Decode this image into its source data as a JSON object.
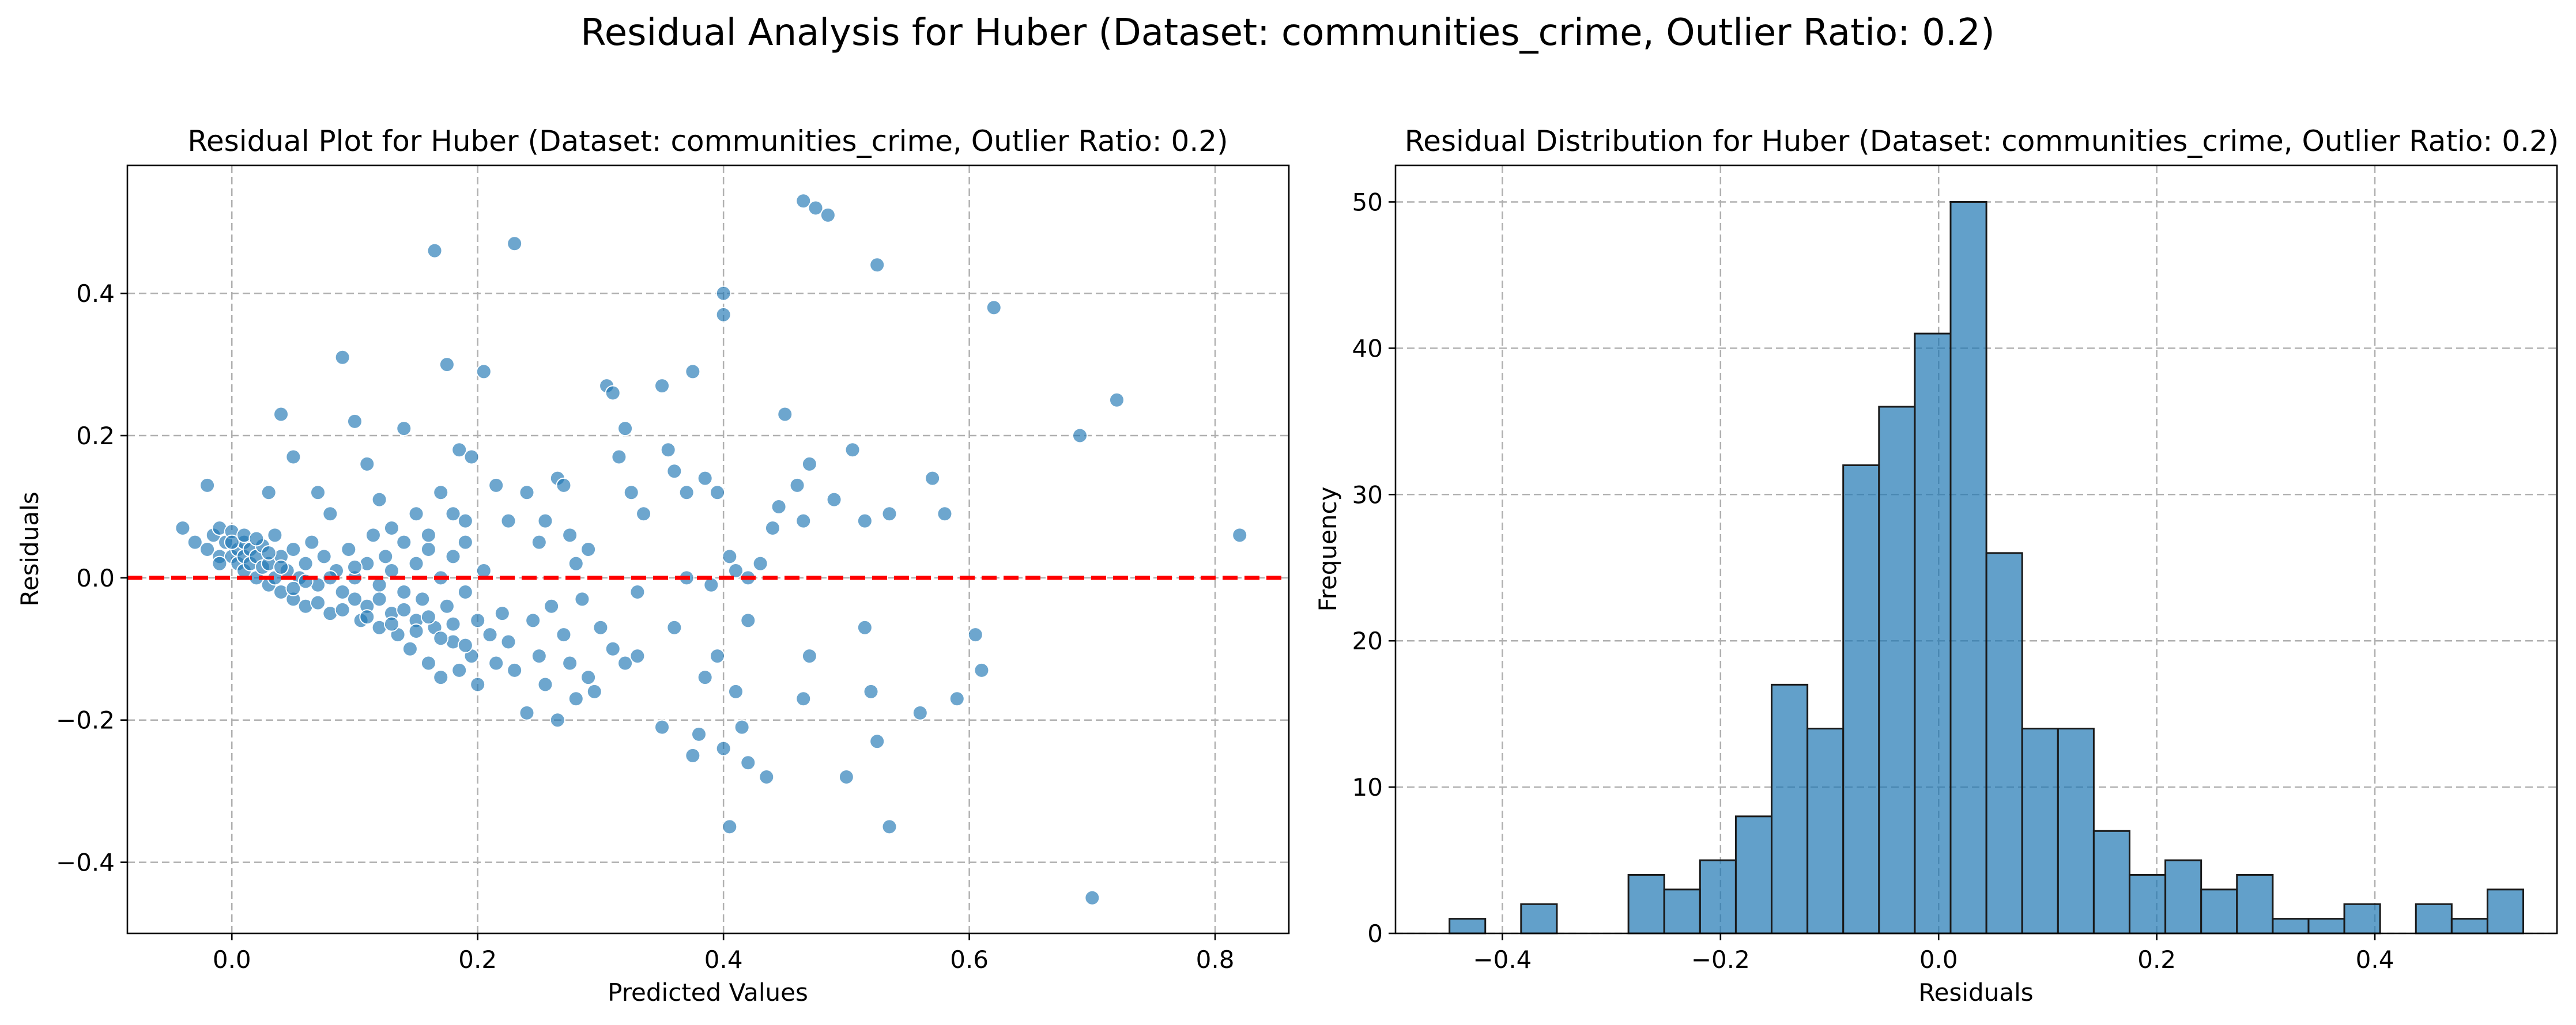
{
  "figure": {
    "suptitle": "Residual Analysis for Huber (Dataset: communities_crime, Outlier Ratio: 0.2)"
  },
  "colors": {
    "points": "#1f77b4",
    "reference_line": "#ff0000",
    "bars": "#1f77b4",
    "bar_edge": "#1a1a1a",
    "grid": "#b0b0b0"
  },
  "chart_data": [
    {
      "type": "scatter",
      "title": "Residual Plot for Huber (Dataset: communities_crime, Outlier Ratio: 0.2)",
      "xlabel": "Predicted Values",
      "ylabel": "Residuals",
      "xlim": [
        -0.085,
        0.86
      ],
      "ylim": [
        -0.5,
        0.58
      ],
      "xticks": [
        0.0,
        0.2,
        0.4,
        0.6,
        0.8
      ],
      "xtick_labels": [
        "0.0",
        "0.2",
        "0.4",
        "0.6",
        "0.8"
      ],
      "yticks": [
        -0.4,
        -0.2,
        0.0,
        0.2,
        0.4
      ],
      "ytick_labels": [
        "−0.4",
        "−0.2",
        "0.0",
        "0.2",
        "0.4"
      ],
      "grid": true,
      "reference_line": {
        "y": 0.0,
        "style": "dashed",
        "color": "#ff0000"
      },
      "points": [
        [
          -0.04,
          0.07
        ],
        [
          -0.03,
          0.05
        ],
        [
          -0.02,
          0.13
        ],
        [
          -0.02,
          0.04
        ],
        [
          -0.015,
          0.06
        ],
        [
          -0.01,
          0.07
        ],
        [
          -0.01,
          0.03
        ],
        [
          -0.005,
          0.05
        ],
        [
          0.0,
          0.065
        ],
        [
          0.0,
          0.03
        ],
        [
          0.005,
          0.04
        ],
        [
          0.005,
          0.02
        ],
        [
          0.01,
          0.05
        ],
        [
          0.01,
          0.03
        ],
        [
          0.01,
          0.01
        ],
        [
          0.015,
          0.04
        ],
        [
          0.015,
          0.02
        ],
        [
          0.02,
          0.03
        ],
        [
          0.02,
          0.0
        ],
        [
          0.025,
          0.045
        ],
        [
          0.025,
          0.015
        ],
        [
          0.03,
          0.02
        ],
        [
          0.03,
          -0.01
        ],
        [
          0.035,
          0.06
        ],
        [
          0.035,
          0.0
        ],
        [
          0.04,
          0.03
        ],
        [
          0.04,
          -0.02
        ],
        [
          0.045,
          0.01
        ],
        [
          0.05,
          0.04
        ],
        [
          0.05,
          -0.03
        ],
        [
          0.055,
          0.0
        ],
        [
          0.06,
          0.02
        ],
        [
          0.06,
          -0.04
        ],
        [
          0.065,
          0.05
        ],
        [
          0.07,
          -0.01
        ],
        [
          0.075,
          0.03
        ],
        [
          0.08,
          -0.05
        ],
        [
          0.085,
          0.01
        ],
        [
          0.09,
          -0.02
        ],
        [
          0.095,
          0.04
        ],
        [
          0.1,
          -0.03
        ],
        [
          0.1,
          0.0
        ],
        [
          0.105,
          -0.06
        ],
        [
          0.11,
          0.02
        ],
        [
          0.11,
          -0.04
        ],
        [
          0.115,
          0.06
        ],
        [
          0.12,
          -0.07
        ],
        [
          0.12,
          -0.01
        ],
        [
          0.125,
          0.03
        ],
        [
          0.13,
          -0.05
        ],
        [
          0.13,
          0.01
        ],
        [
          0.135,
          -0.08
        ],
        [
          0.14,
          -0.02
        ],
        [
          0.14,
          0.05
        ],
        [
          0.145,
          -0.1
        ],
        [
          0.15,
          0.02
        ],
        [
          0.15,
          -0.06
        ],
        [
          0.155,
          -0.03
        ],
        [
          0.16,
          -0.12
        ],
        [
          0.16,
          0.04
        ],
        [
          0.165,
          -0.07
        ],
        [
          0.17,
          0.0
        ],
        [
          0.17,
          -0.14
        ],
        [
          0.175,
          -0.04
        ],
        [
          0.18,
          0.03
        ],
        [
          0.18,
          -0.09
        ],
        [
          0.185,
          -0.13
        ],
        [
          0.19,
          -0.02
        ],
        [
          0.19,
          0.05
        ],
        [
          0.195,
          -0.11
        ],
        [
          0.2,
          -0.06
        ],
        [
          0.2,
          -0.15
        ],
        [
          0.205,
          0.01
        ],
        [
          0.21,
          -0.08
        ],
        [
          0.215,
          -0.12
        ],
        [
          -0.01,
          0.02
        ],
        [
          0.0,
          0.05
        ],
        [
          0.01,
          0.06
        ],
        [
          0.02,
          0.055
        ],
        [
          0.03,
          0.035
        ],
        [
          0.04,
          0.015
        ],
        [
          0.05,
          -0.015
        ],
        [
          0.06,
          -0.005
        ],
        [
          0.07,
          -0.035
        ],
        [
          0.08,
          0.0
        ],
        [
          0.09,
          -0.045
        ],
        [
          0.1,
          0.015
        ],
        [
          0.11,
          -0.055
        ],
        [
          0.12,
          -0.03
        ],
        [
          0.13,
          -0.065
        ],
        [
          0.14,
          -0.045
        ],
        [
          0.15,
          -0.075
        ],
        [
          0.16,
          -0.055
        ],
        [
          0.17,
          -0.085
        ],
        [
          0.18,
          -0.065
        ],
        [
          0.19,
          -0.095
        ],
        [
          0.03,
          0.12
        ],
        [
          0.04,
          0.23
        ],
        [
          0.05,
          0.17
        ],
        [
          0.07,
          0.12
        ],
        [
          0.08,
          0.09
        ],
        [
          0.09,
          0.31
        ],
        [
          0.1,
          0.22
        ],
        [
          0.11,
          0.16
        ],
        [
          0.12,
          0.11
        ],
        [
          0.13,
          0.07
        ],
        [
          0.14,
          0.21
        ],
        [
          0.15,
          0.09
        ],
        [
          0.16,
          0.06
        ],
        [
          0.165,
          0.46
        ],
        [
          0.17,
          0.12
        ],
        [
          0.175,
          0.3
        ],
        [
          0.18,
          0.09
        ],
        [
          0.185,
          0.18
        ],
        [
          0.19,
          0.08
        ],
        [
          0.195,
          0.17
        ],
        [
          0.205,
          0.29
        ],
        [
          0.215,
          0.13
        ],
        [
          0.225,
          0.08
        ],
        [
          0.23,
          0.47
        ],
        [
          0.24,
          0.12
        ],
        [
          0.25,
          0.05
        ],
        [
          0.255,
          0.08
        ],
        [
          0.265,
          0.14
        ],
        [
          0.27,
          0.13
        ],
        [
          0.275,
          0.06
        ],
        [
          0.28,
          0.02
        ],
        [
          0.29,
          0.04
        ],
        [
          0.305,
          0.27
        ],
        [
          0.31,
          0.26
        ],
        [
          0.315,
          0.17
        ],
        [
          0.32,
          0.21
        ],
        [
          0.325,
          0.12
        ],
        [
          0.335,
          0.09
        ],
        [
          0.35,
          0.27
        ],
        [
          0.355,
          0.18
        ],
        [
          0.36,
          0.15
        ],
        [
          0.37,
          0.12
        ],
        [
          0.375,
          0.29
        ],
        [
          0.385,
          0.14
        ],
        [
          0.395,
          0.12
        ],
        [
          0.4,
          0.37
        ],
        [
          0.4,
          0.4
        ],
        [
          0.405,
          0.03
        ],
        [
          0.41,
          0.01
        ],
        [
          0.42,
          0.0
        ],
        [
          0.43,
          0.02
        ],
        [
          0.44,
          0.07
        ],
        [
          0.445,
          0.1
        ],
        [
          0.45,
          0.23
        ],
        [
          0.46,
          0.13
        ],
        [
          0.465,
          0.08
        ],
        [
          0.465,
          0.53
        ],
        [
          0.47,
          0.16
        ],
        [
          0.475,
          0.52
        ],
        [
          0.485,
          0.51
        ],
        [
          0.49,
          0.11
        ],
        [
          0.505,
          0.18
        ],
        [
          0.515,
          0.08
        ],
        [
          0.525,
          0.44
        ],
        [
          0.535,
          0.09
        ],
        [
          0.57,
          0.14
        ],
        [
          0.58,
          0.09
        ],
        [
          0.62,
          0.38
        ],
        [
          0.69,
          0.2
        ],
        [
          0.72,
          0.25
        ],
        [
          0.82,
          0.06
        ],
        [
          0.22,
          -0.05
        ],
        [
          0.225,
          -0.09
        ],
        [
          0.23,
          -0.13
        ],
        [
          0.24,
          -0.19
        ],
        [
          0.245,
          -0.06
        ],
        [
          0.25,
          -0.11
        ],
        [
          0.255,
          -0.15
        ],
        [
          0.26,
          -0.04
        ],
        [
          0.265,
          -0.2
        ],
        [
          0.27,
          -0.08
        ],
        [
          0.275,
          -0.12
        ],
        [
          0.28,
          -0.17
        ],
        [
          0.285,
          -0.03
        ],
        [
          0.29,
          -0.14
        ],
        [
          0.295,
          -0.16
        ],
        [
          0.3,
          -0.07
        ],
        [
          0.31,
          -0.1
        ],
        [
          0.32,
          -0.12
        ],
        [
          0.33,
          -0.11
        ],
        [
          0.35,
          -0.21
        ],
        [
          0.36,
          -0.07
        ],
        [
          0.375,
          -0.25
        ],
        [
          0.38,
          -0.22
        ],
        [
          0.385,
          -0.14
        ],
        [
          0.395,
          -0.11
        ],
        [
          0.4,
          -0.24
        ],
        [
          0.405,
          -0.35
        ],
        [
          0.41,
          -0.16
        ],
        [
          0.415,
          -0.21
        ],
        [
          0.42,
          -0.26
        ],
        [
          0.435,
          -0.28
        ],
        [
          0.465,
          -0.17
        ],
        [
          0.47,
          -0.11
        ],
        [
          0.5,
          -0.28
        ],
        [
          0.515,
          -0.07
        ],
        [
          0.52,
          -0.16
        ],
        [
          0.525,
          -0.23
        ],
        [
          0.535,
          -0.35
        ],
        [
          0.56,
          -0.19
        ],
        [
          0.59,
          -0.17
        ],
        [
          0.605,
          -0.08
        ],
        [
          0.61,
          -0.13
        ],
        [
          0.7,
          -0.45
        ],
        [
          0.39,
          -0.01
        ],
        [
          0.42,
          -0.06
        ],
        [
          0.37,
          0.0
        ],
        [
          0.33,
          -0.02
        ]
      ]
    },
    {
      "type": "bar",
      "chart_kind": "histogram",
      "title": "Residual Distribution for Huber (Dataset: communities_crime, Outlier Ratio: 0.2)",
      "xlabel": "Residuals",
      "ylabel": "Frequency",
      "xlim": [
        -0.498,
        0.567
      ],
      "ylim": [
        0,
        52.5
      ],
      "xticks": [
        -0.4,
        -0.2,
        0.0,
        0.2,
        0.4
      ],
      "xtick_labels": [
        "−0.4",
        "−0.2",
        "0.0",
        "0.2",
        "0.4"
      ],
      "yticks": [
        0,
        10,
        20,
        30,
        40,
        50
      ],
      "ytick_labels": [
        "0",
        "10",
        "20",
        "30",
        "40",
        "50"
      ],
      "grid": true,
      "bin_start": -0.4485,
      "bin_width": 0.03282,
      "counts": [
        1,
        0,
        2,
        0,
        0,
        4,
        3,
        5,
        8,
        17,
        14,
        32,
        36,
        41,
        50,
        26,
        14,
        14,
        7,
        4,
        5,
        3,
        4,
        1,
        1,
        2,
        0,
        2,
        1,
        3
      ]
    }
  ]
}
